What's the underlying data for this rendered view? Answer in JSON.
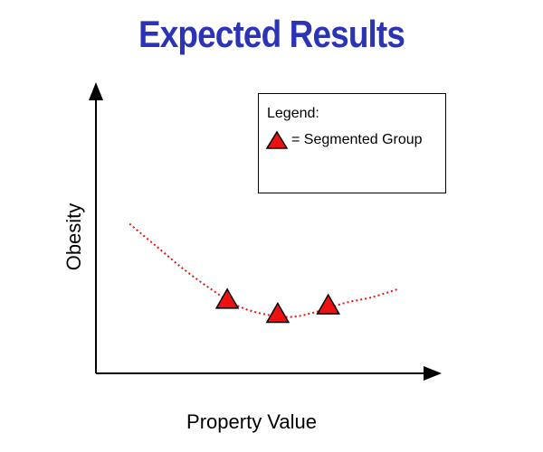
{
  "chart_data": {
    "type": "scatter",
    "title": "Expected Results",
    "xlabel": "Property Value",
    "ylabel": "Obesity",
    "legend": {
      "title": "Legend:",
      "entries": [
        "= Segmented Group"
      ],
      "placement": "top-right"
    },
    "series": [
      {
        "name": "Segmented Group",
        "marker": "triangle",
        "x": [
          0.39,
          0.54,
          0.69
        ],
        "y": [
          0.26,
          0.21,
          0.24
        ]
      }
    ],
    "trend_curve": {
      "style": "dotted",
      "x": [
        0.1,
        0.18,
        0.26,
        0.34,
        0.42,
        0.5,
        0.58,
        0.66,
        0.74,
        0.82,
        0.9
      ],
      "y": [
        0.53,
        0.45,
        0.37,
        0.3,
        0.24,
        0.21,
        0.2,
        0.22,
        0.25,
        0.27,
        0.3
      ]
    },
    "xlim": [
      0,
      1
    ],
    "ylim": [
      0,
      1
    ],
    "axis_ticks": "none",
    "grid": false
  },
  "colors": {
    "title": "#2b34b5",
    "marker_fill": "#ee1111",
    "marker_stroke": "#000000",
    "trend": "#ee1111",
    "axis": "#000000"
  },
  "icons": {
    "legend_marker": "red-triangle-icon"
  }
}
